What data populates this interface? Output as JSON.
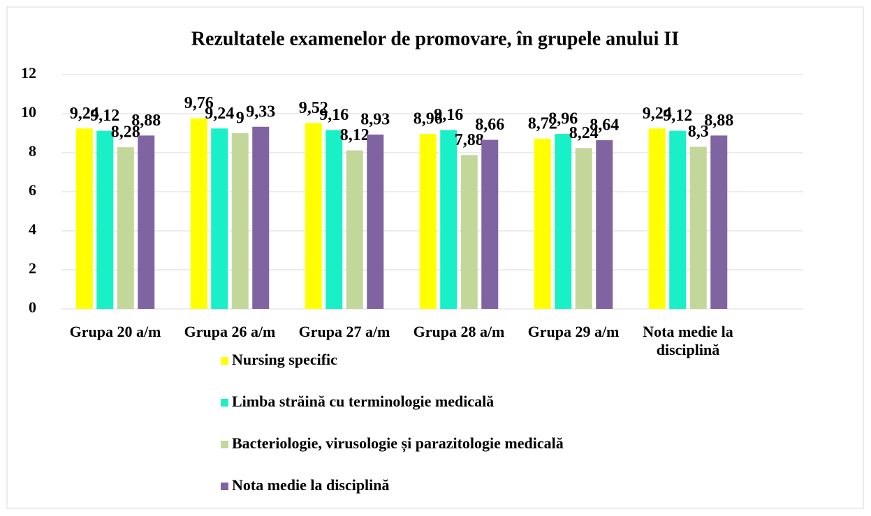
{
  "chart_data": {
    "type": "bar",
    "title": "Rezultatele examenelor de promovare, în grupele anului II",
    "categories": [
      "Grupa 20 a/m",
      "Grupa 26 a/m",
      "Grupa 27 a/m",
      "Grupa 28 a/m",
      "Grupa 29 a/m",
      "Nota medie la disciplină"
    ],
    "series": [
      {
        "name": "Nursing specific",
        "color": "#ffff00",
        "values": [
          9.24,
          9.76,
          9.52,
          8.96,
          8.72,
          9.24
        ],
        "value_labels": [
          "9,24",
          "9,76",
          "9,52",
          "8,96",
          "8,72",
          "9,24"
        ]
      },
      {
        "name": "Limba străină cu terminologie medicală",
        "color": "#19f0c8",
        "values": [
          9.12,
          9.24,
          9.16,
          9.16,
          8.96,
          9.12
        ],
        "value_labels": [
          "9,12",
          "9,24",
          "9,16",
          "9,16",
          "8,96",
          "9,12"
        ]
      },
      {
        "name": "Bacteriologie, virusologie și parazitologie medicală",
        "color": "#c4d79b",
        "values": [
          8.28,
          9,
          8.12,
          7.88,
          8.24,
          8.3
        ],
        "value_labels": [
          "8,28",
          "9",
          "8,12",
          "7,88",
          "8,24",
          "8,3"
        ]
      },
      {
        "name": "Nota medie la disciplină",
        "color": "#8064a2",
        "values": [
          8.88,
          9.33,
          8.93,
          8.66,
          8.64,
          8.88
        ],
        "value_labels": [
          "8,88",
          "9,33",
          "8,93",
          "8,66",
          "8,64",
          "8,88"
        ]
      }
    ],
    "ylim": [
      0,
      12
    ],
    "yticks": [
      0,
      2,
      4,
      6,
      8,
      10,
      12
    ],
    "grid": true,
    "legend": "bottom"
  }
}
